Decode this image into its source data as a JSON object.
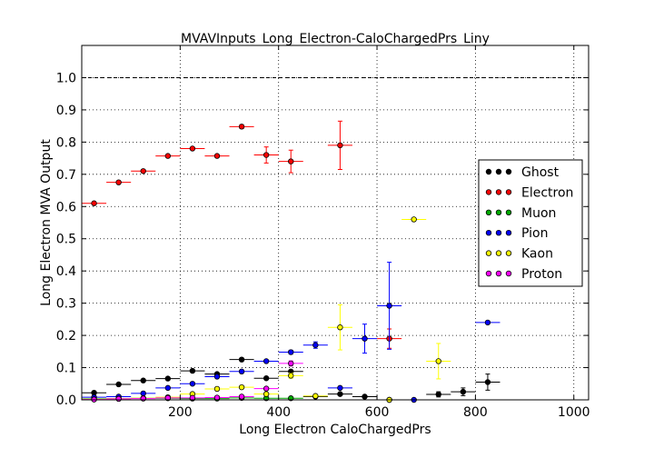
{
  "chart_data": {
    "type": "scatter",
    "title": "MVAVInputs_Long_Electron-CaloChargedPrs_Liny",
    "xlabel": "Long Electron CaloChargedPrs",
    "ylabel": "Long Electron MVA Output",
    "xlim": [
      0,
      1030
    ],
    "ylim": [
      0.0,
      1.1
    ],
    "xticks": [
      {
        "value": 200,
        "label": "200"
      },
      {
        "value": 400,
        "label": "400"
      },
      {
        "value": 600,
        "label": "600"
      },
      {
        "value": 800,
        "label": "800"
      },
      {
        "value": 1000,
        "label": "1000"
      }
    ],
    "yticks": [
      {
        "value": 0.0,
        "label": "0.0"
      },
      {
        "value": 0.1,
        "label": "0.1"
      },
      {
        "value": 0.2,
        "label": "0.2"
      },
      {
        "value": 0.3,
        "label": "0.3"
      },
      {
        "value": 0.4,
        "label": "0.4"
      },
      {
        "value": 0.5,
        "label": "0.5"
      },
      {
        "value": 0.6,
        "label": "0.6"
      },
      {
        "value": 0.7,
        "label": "0.7"
      },
      {
        "value": 0.8,
        "label": "0.8"
      },
      {
        "value": 0.9,
        "label": "0.9"
      },
      {
        "value": 1.0,
        "label": "1.0"
      }
    ],
    "grid": true,
    "reference_line": 1.0,
    "legend_position": "right",
    "series": [
      {
        "name": "Ghost",
        "color": "#000000",
        "points": [
          {
            "x": 25,
            "y": 0.022,
            "xerr": 25,
            "yerr": 0.003
          },
          {
            "x": 75,
            "y": 0.048,
            "xerr": 25,
            "yerr": 0.003
          },
          {
            "x": 125,
            "y": 0.06,
            "xerr": 25,
            "yerr": 0.003
          },
          {
            "x": 175,
            "y": 0.066,
            "xerr": 25,
            "yerr": 0.003
          },
          {
            "x": 225,
            "y": 0.09,
            "xerr": 25,
            "yerr": 0.004
          },
          {
            "x": 275,
            "y": 0.08,
            "xerr": 25,
            "yerr": 0.004
          },
          {
            "x": 325,
            "y": 0.125,
            "xerr": 25,
            "yerr": 0.004
          },
          {
            "x": 375,
            "y": 0.067,
            "xerr": 25,
            "yerr": 0.004
          },
          {
            "x": 425,
            "y": 0.088,
            "xerr": 25,
            "yerr": 0.005
          },
          {
            "x": 475,
            "y": 0.01,
            "xerr": 25,
            "yerr": 0.003
          },
          {
            "x": 525,
            "y": 0.018,
            "xerr": 25,
            "yerr": 0.003
          },
          {
            "x": 575,
            "y": 0.01,
            "xerr": 25,
            "yerr": 0.003
          },
          {
            "x": 625,
            "y": 0.0,
            "xerr": 25,
            "yerr": 0.002
          },
          {
            "x": 725,
            "y": 0.017,
            "xerr": 25,
            "yerr": 0.008
          },
          {
            "x": 775,
            "y": 0.025,
            "xerr": 25,
            "yerr": 0.012
          },
          {
            "x": 825,
            "y": 0.055,
            "xerr": 25,
            "yerr": 0.025
          }
        ]
      },
      {
        "name": "Electron",
        "color": "#ff0000",
        "points": [
          {
            "x": 25,
            "y": 0.61,
            "xerr": 25,
            "yerr": 0.004
          },
          {
            "x": 75,
            "y": 0.675,
            "xerr": 25,
            "yerr": 0.004
          },
          {
            "x": 125,
            "y": 0.71,
            "xerr": 25,
            "yerr": 0.004
          },
          {
            "x": 175,
            "y": 0.757,
            "xerr": 25,
            "yerr": 0.004
          },
          {
            "x": 225,
            "y": 0.78,
            "xerr": 25,
            "yerr": 0.004
          },
          {
            "x": 275,
            "y": 0.757,
            "xerr": 25,
            "yerr": 0.004
          },
          {
            "x": 325,
            "y": 0.848,
            "xerr": 25,
            "yerr": 0.006
          },
          {
            "x": 375,
            "y": 0.76,
            "xerr": 25,
            "yerr": 0.025
          },
          {
            "x": 425,
            "y": 0.74,
            "xerr": 25,
            "yerr": 0.035
          },
          {
            "x": 525,
            "y": 0.79,
            "xerr": 25,
            "yerr": 0.075
          },
          {
            "x": 625,
            "y": 0.19,
            "xerr": 25,
            "yerr": 0.03
          }
        ]
      },
      {
        "name": "Muon",
        "color": "#00aa00",
        "points": [
          {
            "x": 25,
            "y": 0.003,
            "xerr": 25,
            "yerr": 0.002
          },
          {
            "x": 75,
            "y": 0.004,
            "xerr": 25,
            "yerr": 0.002
          },
          {
            "x": 125,
            "y": 0.005,
            "xerr": 25,
            "yerr": 0.002
          },
          {
            "x": 175,
            "y": 0.005,
            "xerr": 25,
            "yerr": 0.002
          },
          {
            "x": 225,
            "y": 0.004,
            "xerr": 25,
            "yerr": 0.002
          },
          {
            "x": 275,
            "y": 0.004,
            "xerr": 25,
            "yerr": 0.002
          },
          {
            "x": 325,
            "y": 0.006,
            "xerr": 25,
            "yerr": 0.002
          },
          {
            "x": 375,
            "y": 0.005,
            "xerr": 25,
            "yerr": 0.002
          },
          {
            "x": 425,
            "y": 0.005,
            "xerr": 25,
            "yerr": 0.002
          }
        ]
      },
      {
        "name": "Pion",
        "color": "#0000ff",
        "points": [
          {
            "x": 25,
            "y": 0.008,
            "xerr": 25,
            "yerr": 0.002
          },
          {
            "x": 75,
            "y": 0.01,
            "xerr": 25,
            "yerr": 0.002
          },
          {
            "x": 125,
            "y": 0.02,
            "xerr": 25,
            "yerr": 0.002
          },
          {
            "x": 175,
            "y": 0.037,
            "xerr": 25,
            "yerr": 0.003
          },
          {
            "x": 225,
            "y": 0.05,
            "xerr": 25,
            "yerr": 0.003
          },
          {
            "x": 275,
            "y": 0.072,
            "xerr": 25,
            "yerr": 0.003
          },
          {
            "x": 325,
            "y": 0.088,
            "xerr": 25,
            "yerr": 0.004
          },
          {
            "x": 375,
            "y": 0.12,
            "xerr": 25,
            "yerr": 0.004
          },
          {
            "x": 425,
            "y": 0.148,
            "xerr": 25,
            "yerr": 0.006
          },
          {
            "x": 475,
            "y": 0.17,
            "xerr": 25,
            "yerr": 0.01
          },
          {
            "x": 525,
            "y": 0.037,
            "xerr": 25,
            "yerr": 0.005
          },
          {
            "x": 575,
            "y": 0.19,
            "xerr": 25,
            "yerr": 0.045
          },
          {
            "x": 625,
            "y": 0.292,
            "xerr": 25,
            "yerr": 0.135
          },
          {
            "x": 675,
            "y": 0.0,
            "xerr": 25,
            "yerr": 0.002
          },
          {
            "x": 825,
            "y": 0.24,
            "xerr": 25,
            "yerr": 0.003
          }
        ]
      },
      {
        "name": "Kaon",
        "color": "#ffff00",
        "points": [
          {
            "x": 25,
            "y": 0.002,
            "xerr": 25,
            "yerr": 0.002
          },
          {
            "x": 75,
            "y": 0.004,
            "xerr": 25,
            "yerr": 0.002
          },
          {
            "x": 125,
            "y": 0.005,
            "xerr": 25,
            "yerr": 0.002
          },
          {
            "x": 175,
            "y": 0.008,
            "xerr": 25,
            "yerr": 0.002
          },
          {
            "x": 225,
            "y": 0.018,
            "xerr": 25,
            "yerr": 0.002
          },
          {
            "x": 275,
            "y": 0.034,
            "xerr": 25,
            "yerr": 0.003
          },
          {
            "x": 325,
            "y": 0.039,
            "xerr": 25,
            "yerr": 0.003
          },
          {
            "x": 375,
            "y": 0.018,
            "xerr": 25,
            "yerr": 0.004
          },
          {
            "x": 425,
            "y": 0.075,
            "xerr": 25,
            "yerr": 0.008
          },
          {
            "x": 475,
            "y": 0.012,
            "xerr": 25,
            "yerr": 0.004
          },
          {
            "x": 525,
            "y": 0.225,
            "xerr": 25,
            "yerr": 0.07
          },
          {
            "x": 625,
            "y": 0.0,
            "xerr": 25,
            "yerr": 0.002
          },
          {
            "x": 675,
            "y": 0.56,
            "xerr": 25,
            "yerr": 0.004
          },
          {
            "x": 725,
            "y": 0.12,
            "xerr": 25,
            "yerr": 0.055
          }
        ]
      },
      {
        "name": "Proton",
        "color": "#ff00ff",
        "points": [
          {
            "x": 25,
            "y": 0.001,
            "xerr": 25,
            "yerr": 0.001
          },
          {
            "x": 75,
            "y": 0.003,
            "xerr": 25,
            "yerr": 0.001
          },
          {
            "x": 125,
            "y": 0.004,
            "xerr": 25,
            "yerr": 0.001
          },
          {
            "x": 175,
            "y": 0.006,
            "xerr": 25,
            "yerr": 0.002
          },
          {
            "x": 225,
            "y": 0.006,
            "xerr": 25,
            "yerr": 0.002
          },
          {
            "x": 275,
            "y": 0.007,
            "xerr": 25,
            "yerr": 0.002
          },
          {
            "x": 325,
            "y": 0.01,
            "xerr": 25,
            "yerr": 0.002
          },
          {
            "x": 375,
            "y": 0.035,
            "xerr": 25,
            "yerr": 0.004
          },
          {
            "x": 425,
            "y": 0.113,
            "xerr": 25,
            "yerr": 0.008
          }
        ]
      }
    ]
  }
}
